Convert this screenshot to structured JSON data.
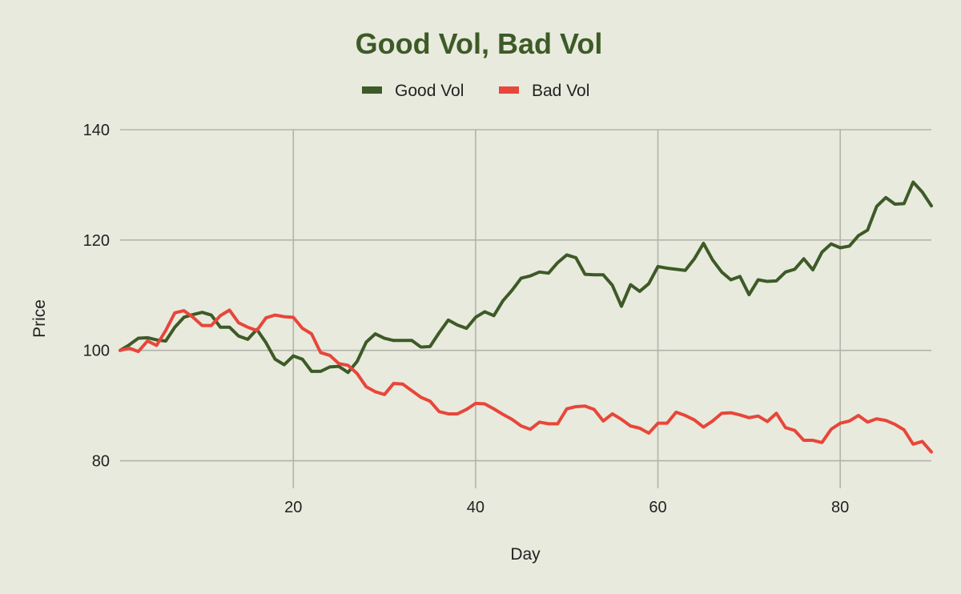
{
  "chart_data": {
    "type": "line",
    "title": "Good Vol, Bad Vol",
    "xlabel": "Day",
    "ylabel": "Price",
    "xlim": [
      1,
      90
    ],
    "ylim": [
      75,
      140
    ],
    "x_ticks": [
      20,
      40,
      60,
      80
    ],
    "y_ticks": [
      80,
      100,
      120,
      140
    ],
    "grid": true,
    "legend_position": "top-center",
    "colors": {
      "background": "#e8eadd",
      "title": "#3d5a27",
      "grid": "#b3b3ab"
    },
    "x": [
      1,
      2,
      3,
      4,
      5,
      6,
      7,
      8,
      9,
      10,
      11,
      12,
      13,
      14,
      15,
      16,
      17,
      18,
      19,
      20,
      21,
      22,
      23,
      24,
      25,
      26,
      27,
      28,
      29,
      30,
      31,
      32,
      33,
      34,
      35,
      36,
      37,
      38,
      39,
      40,
      41,
      42,
      43,
      44,
      45,
      46,
      47,
      48,
      49,
      50,
      51,
      52,
      53,
      54,
      55,
      56,
      57,
      58,
      59,
      60,
      61,
      62,
      63,
      64,
      65,
      66,
      67,
      68,
      69,
      70,
      71,
      72,
      73,
      74,
      75,
      76,
      77,
      78,
      79,
      80,
      81,
      82,
      83,
      84,
      85,
      86,
      87,
      88,
      89,
      90
    ],
    "series": [
      {
        "name": "Good Vol",
        "color": "#3d5a27",
        "values": [
          100.0,
          101.0,
          102.2,
          102.3,
          101.9,
          101.7,
          104.2,
          106.0,
          106.5,
          106.9,
          106.4,
          104.2,
          104.2,
          102.6,
          102.0,
          103.8,
          101.4,
          98.4,
          97.4,
          99.0,
          98.4,
          96.2,
          96.2,
          97.0,
          97.1,
          96.0,
          98.0,
          101.5,
          103.0,
          102.2,
          101.8,
          101.8,
          101.8,
          100.6,
          100.7,
          103.2,
          105.5,
          104.6,
          104.0,
          106.0,
          107.0,
          106.3,
          109.0,
          110.9,
          113.1,
          113.5,
          114.2,
          114.0,
          115.9,
          117.3,
          116.8,
          113.8,
          113.7,
          113.7,
          111.8,
          108.0,
          111.9,
          110.7,
          112.1,
          115.2,
          114.9,
          114.7,
          114.5,
          116.6,
          119.4,
          116.4,
          114.2,
          112.8,
          113.4,
          110.1,
          112.8,
          112.5,
          112.6,
          114.2,
          114.7,
          116.6,
          114.6,
          117.8,
          119.3,
          118.6,
          118.9,
          120.8,
          121.8,
          126.1,
          127.7,
          126.5,
          126.6,
          130.5,
          128.7,
          126.2
        ]
      },
      {
        "name": "Bad Vol",
        "color": "#e8463a",
        "values": [
          100.0,
          100.4,
          99.8,
          101.7,
          100.9,
          103.6,
          106.8,
          107.2,
          106.0,
          104.5,
          104.5,
          106.3,
          107.3,
          105.0,
          104.2,
          103.6,
          105.9,
          106.4,
          106.1,
          106.0,
          104.0,
          103.0,
          99.6,
          99.1,
          97.6,
          97.3,
          95.8,
          93.4,
          92.5,
          92.0,
          94.0,
          93.9,
          92.7,
          91.5,
          90.8,
          88.9,
          88.5,
          88.5,
          89.3,
          90.4,
          90.3,
          89.4,
          88.4,
          87.5,
          86.3,
          85.7,
          87.0,
          86.7,
          86.7,
          89.4,
          89.8,
          89.9,
          89.3,
          87.2,
          88.5,
          87.5,
          86.3,
          85.9,
          85.0,
          86.8,
          86.8,
          88.8,
          88.2,
          87.4,
          86.1,
          87.2,
          88.6,
          88.7,
          88.3,
          87.8,
          88.1,
          87.1,
          88.6,
          86.0,
          85.5,
          83.7,
          83.7,
          83.3,
          85.7,
          86.8,
          87.2,
          88.2,
          87.0,
          87.6,
          87.3,
          86.6,
          85.6,
          83.0,
          83.5,
          81.6
        ]
      }
    ]
  }
}
